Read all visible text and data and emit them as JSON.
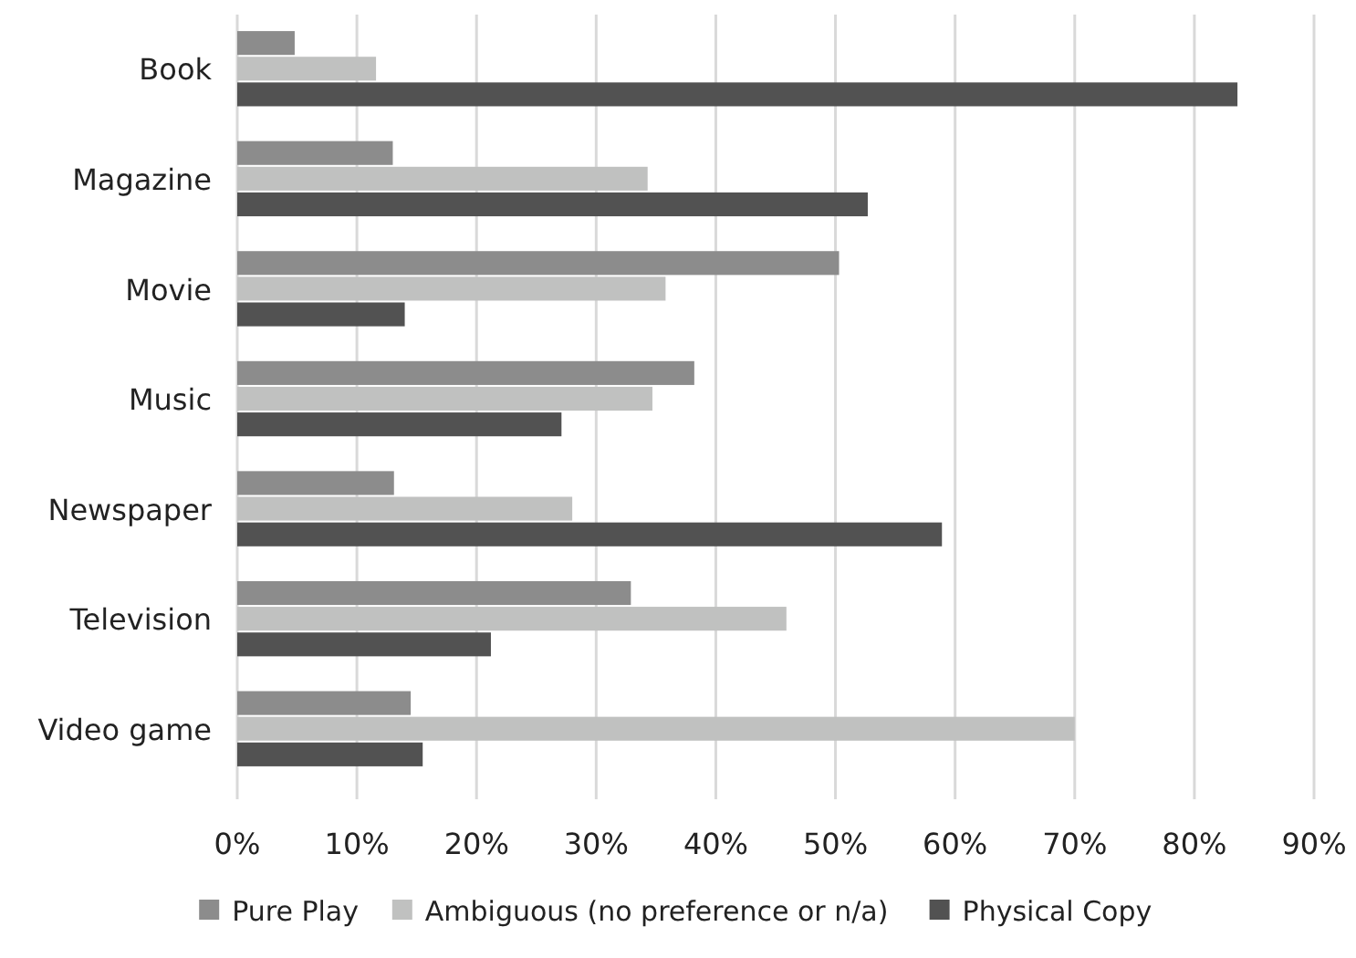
{
  "chart_data": {
    "type": "bar",
    "orientation": "horizontal",
    "categories": [
      "Book",
      "Magazine",
      "Movie",
      "Music",
      "Newspaper",
      "Television",
      "Video game"
    ],
    "series": [
      {
        "name": "Pure Play",
        "color": "#8c8c8c",
        "values": [
          4.8,
          13,
          50.3,
          38.2,
          13.1,
          32.9,
          14.5
        ]
      },
      {
        "name": "Ambiguous (no preference or n/a)",
        "color": "#c0c1c0",
        "values": [
          11.6,
          34.3,
          35.8,
          34.7,
          28,
          45.9,
          70
        ]
      },
      {
        "name": "Physical Copy",
        "color": "#525252",
        "values": [
          83.6,
          52.7,
          14,
          27.1,
          58.9,
          21.2,
          15.5
        ]
      }
    ],
    "xlim": [
      0,
      90
    ],
    "xticks": [
      {
        "value": 0,
        "label": "0%"
      },
      {
        "value": 10,
        "label": "10%"
      },
      {
        "value": 20,
        "label": "20%"
      },
      {
        "value": 30,
        "label": "30%"
      },
      {
        "value": 40,
        "label": "40%"
      },
      {
        "value": 50,
        "label": "50%"
      },
      {
        "value": 60,
        "label": "60%"
      },
      {
        "value": 70,
        "label": "70%"
      },
      {
        "value": 80,
        "label": "80%"
      },
      {
        "value": 90,
        "label": "90%"
      }
    ],
    "grid": "x",
    "legend": "bottom"
  }
}
